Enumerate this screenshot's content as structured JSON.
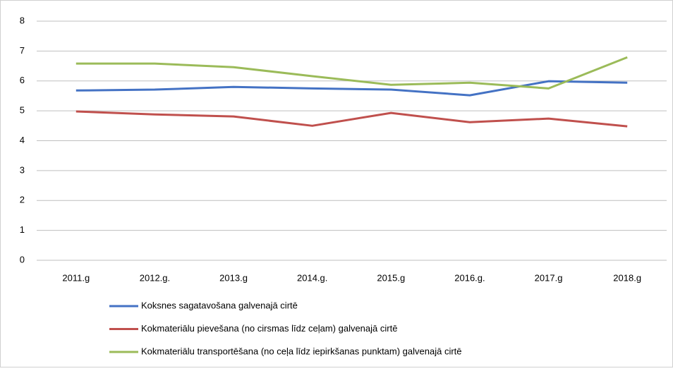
{
  "chart_data": {
    "type": "line",
    "categories": [
      "2011.g",
      "2012.g.",
      "2013.g",
      "2014.g.",
      "2015.g",
      "2016.g.",
      "2017.g",
      "2018.g"
    ],
    "series": [
      {
        "name": "Koksnes sagatavošana galvenajā cirtē",
        "color": "#4472c4",
        "values": [
          5.68,
          5.71,
          5.8,
          5.75,
          5.71,
          5.52,
          5.99,
          5.94
        ]
      },
      {
        "name": "Kokmateriālu pievešana (no cirsmas līdz ceļam) galvenajā cirtē",
        "color": "#c0504d",
        "values": [
          4.98,
          4.88,
          4.81,
          4.5,
          4.93,
          4.62,
          4.74,
          4.48
        ]
      },
      {
        "name": "Kokmateriālu transportēšana (no ceļa līdz iepirkšanas punktam) galvenajā cirtē",
        "color": "#9bbb59",
        "values": [
          6.58,
          6.58,
          6.46,
          6.16,
          5.87,
          5.94,
          5.75,
          6.79
        ]
      }
    ],
    "ylim": [
      0,
      8
    ],
    "yticks": [
      0,
      1,
      2,
      3,
      4,
      5,
      6,
      7,
      8
    ],
    "grid": true
  }
}
